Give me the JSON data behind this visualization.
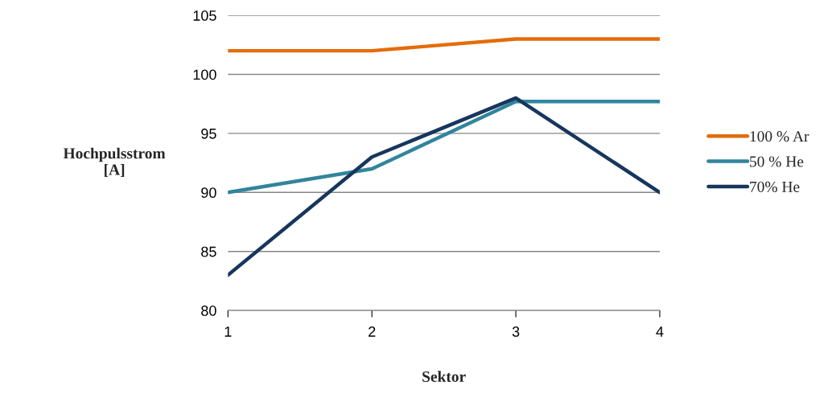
{
  "chart_data": {
    "type": "line",
    "xlabel": "Sektor",
    "ylabel": "Hochpulsstrom\n[A]",
    "x": [
      1,
      2,
      3,
      4
    ],
    "xlim": [
      1,
      4
    ],
    "xticks": [
      1,
      2,
      3,
      4
    ],
    "ylim": [
      80,
      105
    ],
    "yticks": [
      80,
      85,
      90,
      95,
      100,
      105
    ],
    "grid": "y",
    "legend": "right",
    "marker": "none",
    "line_style": "solid",
    "series": [
      {
        "name": "100 % Ar",
        "color": "#e46c0a",
        "values": [
          102,
          102,
          103,
          103
        ]
      },
      {
        "name": "50 % He",
        "color": "#31859c",
        "values": [
          90,
          92,
          97.7,
          97.7
        ]
      },
      {
        "name": "70% He",
        "color": "#17365d",
        "values": [
          83,
          93,
          98,
          90
        ]
      }
    ]
  }
}
